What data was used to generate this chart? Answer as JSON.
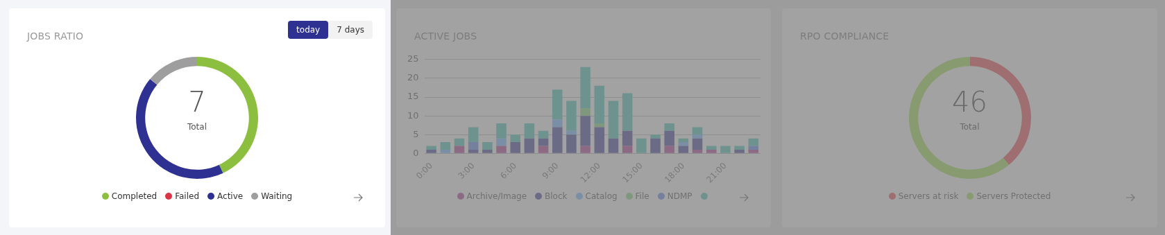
{
  "chart_data": [
    {
      "type": "donut",
      "title": "JOBS RATIO",
      "categories": [
        "Completed",
        "Failed",
        "Active",
        "Waiting"
      ],
      "values": [
        43,
        0,
        43,
        14
      ],
      "colors": [
        "#8cbf3f",
        "#dc3545",
        "#2e3192",
        "#9e9e9e"
      ],
      "legend": "bottom",
      "annotations": [
        "today",
        "7 days",
        "7",
        "Total"
      ]
    },
    {
      "type": "bar",
      "title": "ACTIVE JOBS",
      "stacked": true,
      "grid": "y",
      "legend": "bottom",
      "ylim": [
        0,
        25
      ],
      "yticks": [
        0,
        5,
        10,
        15,
        20,
        25
      ],
      "categories": [
        "0:00",
        null,
        null,
        "3:00",
        null,
        null,
        "6:00",
        null,
        null,
        "9:00",
        null,
        null,
        "12:00",
        null,
        null,
        "15:00",
        null,
        null,
        "18:00",
        null,
        null,
        "21:00",
        null,
        null
      ],
      "series": [
        {
          "name": "Archive/Image",
          "color": "#8c6a84",
          "values": [
            0,
            0,
            2,
            0,
            0,
            2,
            0,
            0,
            2,
            0,
            0,
            2,
            0,
            0,
            2,
            0,
            0,
            2,
            0,
            1,
            1,
            0,
            0,
            1
          ]
        },
        {
          "name": "Block",
          "color": "#6b6b85",
          "values": [
            1,
            0,
            0,
            1,
            1,
            0,
            3,
            4,
            2,
            7,
            5,
            8,
            7,
            4,
            4,
            0,
            4,
            4,
            2,
            3,
            0,
            0,
            1,
            0
          ]
        },
        {
          "name": "Catalog",
          "color": "#7a8fa6",
          "values": [
            0,
            1,
            0,
            0,
            0,
            2,
            0,
            0,
            0,
            2,
            1,
            0,
            0,
            0,
            0,
            0,
            0,
            0,
            1,
            1,
            0,
            0,
            0,
            0
          ]
        },
        {
          "name": "File",
          "color": "#7f977c",
          "values": [
            0,
            0,
            0,
            0,
            0,
            0,
            0,
            0,
            0,
            0,
            0,
            2,
            1,
            0,
            0,
            0,
            0,
            0,
            0,
            0,
            0,
            0,
            0,
            0
          ]
        },
        {
          "name": "NDMP",
          "color": "#75809e",
          "values": [
            0,
            0,
            0,
            2,
            0,
            0,
            0,
            0,
            0,
            0,
            0,
            0,
            0,
            0,
            0,
            0,
            0,
            0,
            0,
            0,
            0,
            0,
            0,
            1
          ]
        },
        {
          "color": "#6e938f",
          "values": [
            1,
            2,
            2,
            4,
            2,
            4,
            2,
            4,
            2,
            8,
            8,
            11,
            10,
            10,
            10,
            4,
            1,
            2,
            1,
            2,
            1,
            2,
            1,
            2
          ]
        }
      ]
    },
    {
      "type": "donut",
      "title": "RPO COMPLIANCE",
      "categories": [
        "Servers at risk",
        "Servers Protected"
      ],
      "values": [
        39,
        61
      ],
      "colors": [
        "#9e6e70",
        "#879a70"
      ],
      "legend": "bottom",
      "annotations": [
        "46",
        "Total"
      ]
    }
  ]
}
